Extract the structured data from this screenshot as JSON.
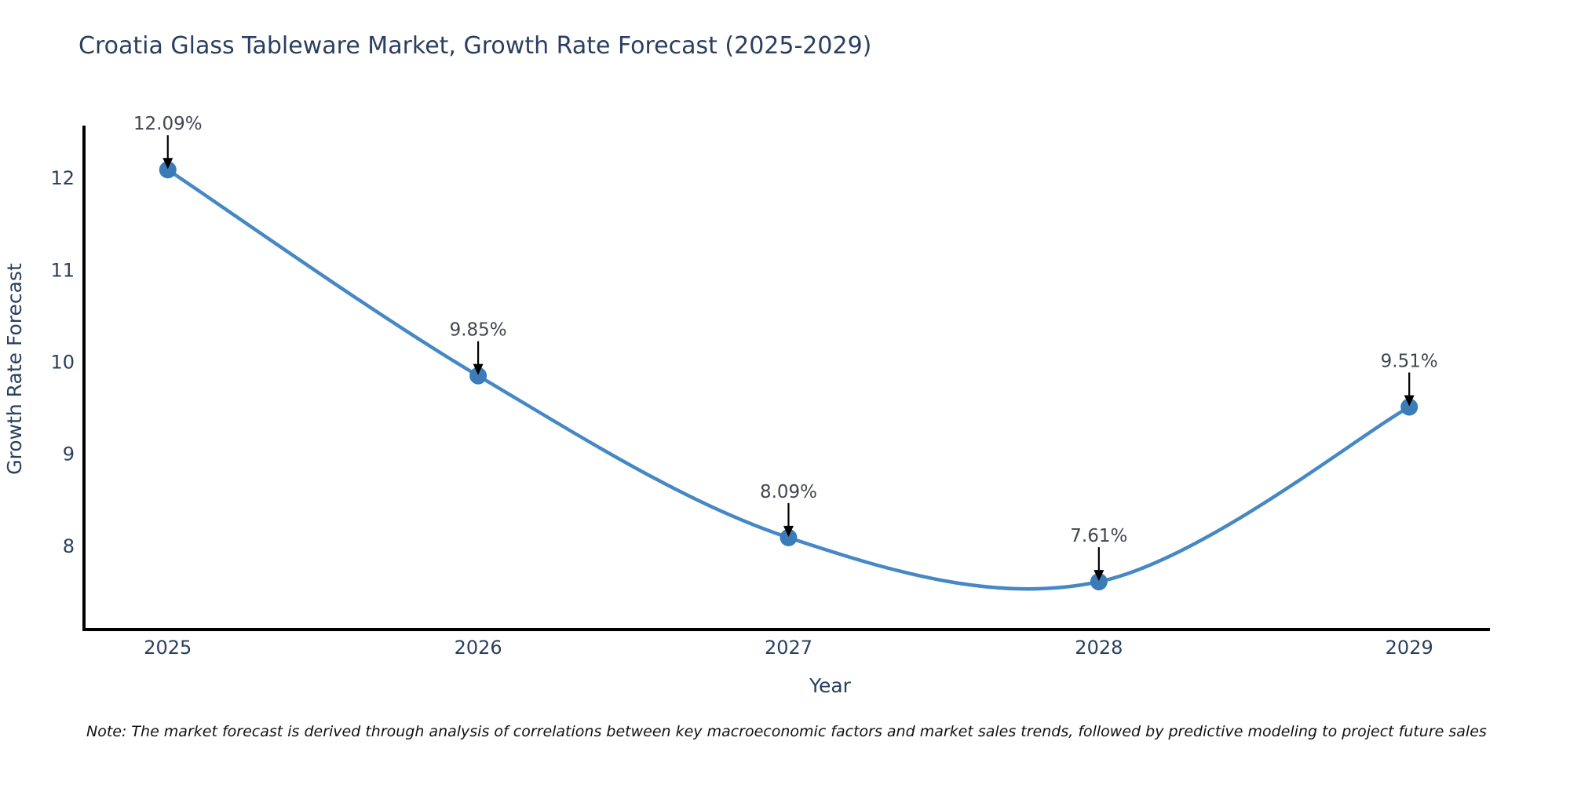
{
  "chart_data": {
    "type": "line",
    "title": "Croatia Glass Tableware Market, Growth Rate Forecast (2025-2029)",
    "xlabel": "Year",
    "ylabel": "Growth Rate Forecast",
    "categories": [
      2025,
      2026,
      2027,
      2028,
      2029
    ],
    "values": [
      12.09,
      9.85,
      8.09,
      7.61,
      9.51
    ],
    "point_labels": [
      "12.09%",
      "9.85%",
      "8.09%",
      "7.61%",
      "9.51%"
    ],
    "series_name": "Growth Rate Forecast",
    "line_shape": "spline",
    "grid": false,
    "legend_position": "none",
    "xticks": [
      "2025",
      "2026",
      "2027",
      "2028",
      "2029"
    ],
    "yticks": [
      "8",
      "9",
      "10",
      "11",
      "12"
    ],
    "ytick_values": [
      8,
      9,
      10,
      11,
      12
    ],
    "xlim": [
      2024.73,
      2029.26
    ],
    "ylim": [
      7.09,
      12.57
    ],
    "colors": {
      "line": "#4688c4",
      "marker": "#3b7cb8",
      "axis": "#000000",
      "tick_text": "#2a3f5f",
      "axis_title_text": "#2a3f5f",
      "annotation_text": "#42464e",
      "annotation_arrow": "#000000",
      "background": "#ffffff"
    }
  },
  "note": "Note: The market forecast is derived through analysis of correlations between key macroeconomic factors and market sales trends, followed by predictive modeling to project future sales"
}
